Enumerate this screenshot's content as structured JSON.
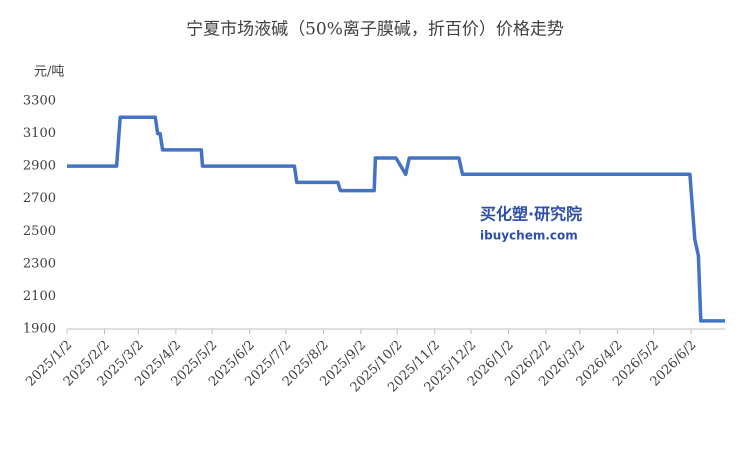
{
  "chart_data": {
    "type": "line",
    "title": "宁夏市场液碱（50%离子膜碱，折百价）价格走势",
    "y_label": "元/吨",
    "watermark": [
      "买化塑·研究院",
      "ibuychem.com"
    ],
    "x": [
      "2025/1/2",
      "2025/2/12",
      "2025/2/15",
      "2025/3/16",
      "2025/3/18",
      "2025/3/20",
      "2025/3/22",
      "2025/4/23",
      "2025/4/24",
      "2025/7/9",
      "2025/7/11",
      "2025/8/14",
      "2025/8/16",
      "2025/9/13",
      "2025/9/14",
      "2025/10/1",
      "2025/10/9",
      "2025/10/12",
      "2025/11/22",
      "2025/11/25",
      "2026/6/1",
      "2026/6/5",
      "2026/6/8",
      "2026/6/10",
      "2026/6/30"
    ],
    "values": [
      2900,
      2900,
      3200,
      3200,
      3100,
      3100,
      3000,
      3000,
      2900,
      2900,
      2800,
      2800,
      2750,
      2750,
      2950,
      2950,
      2850,
      2950,
      2950,
      2850,
      2850,
      2450,
      2350,
      1950,
      1950
    ],
    "color": "#4472c4",
    "xlim": [
      "2025/1/2",
      "2026/6/30"
    ],
    "xticks": [
      "2025/1/2",
      "2025/2/2",
      "2025/3/2",
      "2025/4/2",
      "2025/5/2",
      "2025/6/2",
      "2025/7/2",
      "2025/8/2",
      "2025/9/2",
      "2025/10/2",
      "2025/11/2",
      "2025/12/2",
      "2026/1/2",
      "2026/2/2",
      "2026/3/2",
      "2026/4/2",
      "2026/5/2",
      "2026/6/2"
    ],
    "ylim": [
      1900,
      3300
    ],
    "yticks": [
      1900,
      2100,
      2300,
      2500,
      2700,
      2900,
      3100,
      3300
    ],
    "grid": false
  }
}
